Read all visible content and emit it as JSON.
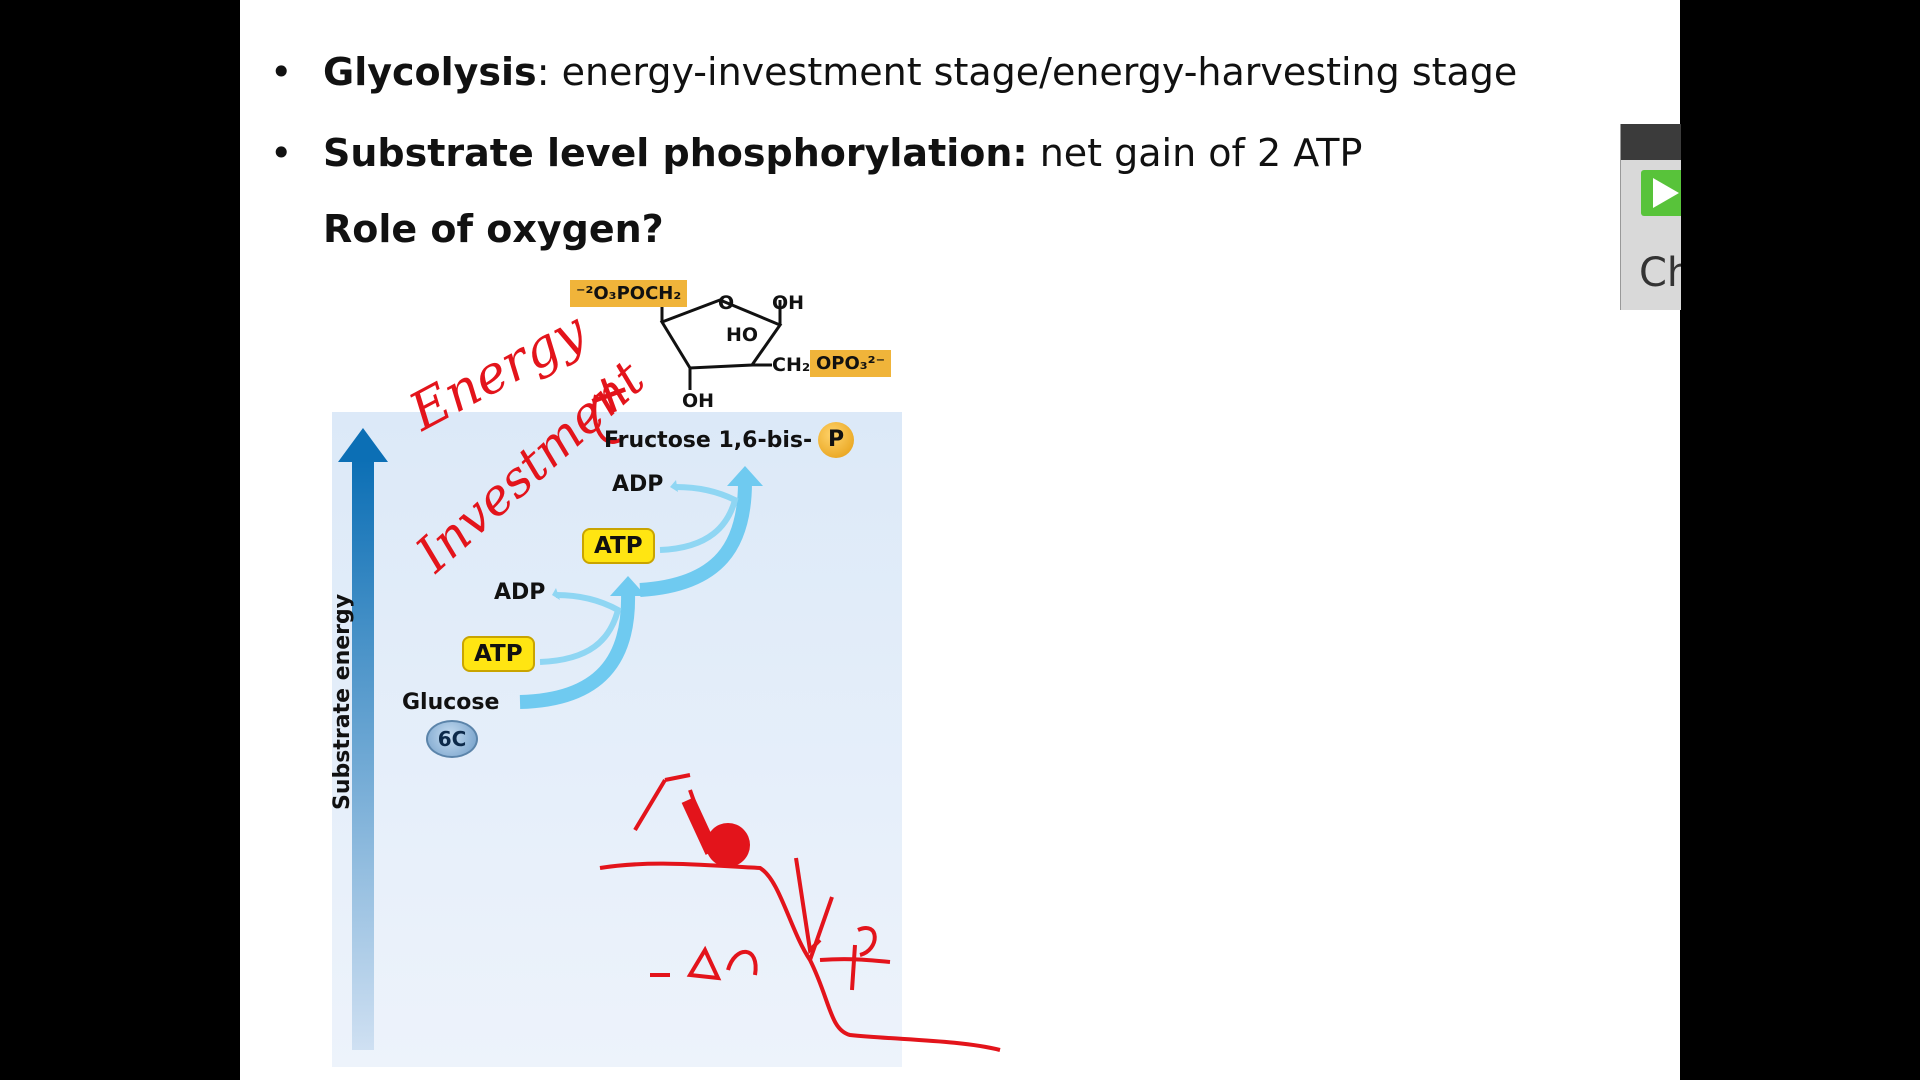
{
  "slide": {
    "bullets": [
      {
        "bold": "Glycolysis",
        "text": ":  energy-investment stage/energy-harvesting stage"
      },
      {
        "bold": "Substrate level phosphorylation:",
        "text": "  net gain of  2 ATP"
      }
    ],
    "question": "Role of oxygen?",
    "bullet_glyph": "•"
  },
  "diagram": {
    "product": "Fructose 1,6-bis-",
    "product_badge": "P",
    "adp_top": "ADP",
    "atp_top": "ATP",
    "adp_bottom": "ADP",
    "atp_bottom": "ATP",
    "start": "Glucose",
    "start_badge": "6C",
    "axis_label": "Substrate energy",
    "structure": {
      "left_group": "⁻²O₃POCH₂",
      "right_group": "OPO₃²⁻",
      "ring_o": "O",
      "oh_top": "OH",
      "ho": "HO",
      "ch2": "CH₂",
      "oh_bottom": "OH"
    }
  },
  "annotations": {
    "energy": "Energy",
    "investment": "Investment",
    "plus": "+",
    "delta_g": "-ΔG"
  },
  "widget": {
    "label": "Ch",
    "play_icon": "play-icon"
  }
}
